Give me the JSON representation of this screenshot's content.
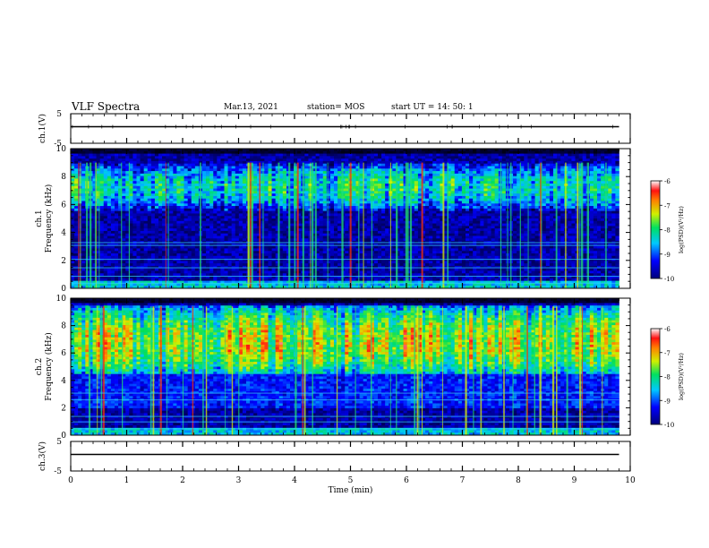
{
  "header": {
    "title": "VLF Spectra",
    "date": "Mar.13, 2021",
    "station": "station= MOS",
    "start_ut": "start  UT =   14: 50: 1"
  },
  "chart_data": [
    {
      "type": "line",
      "panel": "ch.1 waveform",
      "ylabel": "ch.1(V)",
      "ylim": [
        -5,
        5
      ],
      "y_ticks": [
        "5",
        "-5"
      ],
      "series": [
        {
          "x": [
            0,
            9.8
          ],
          "y": [
            0,
            0
          ]
        }
      ]
    },
    {
      "type": "heatmap",
      "panel": "ch.1 spectrogram",
      "ylabel": "ch.1\nFrequency (kHz)",
      "ylim": [
        0,
        10
      ],
      "y_ticks": [
        "0",
        "2",
        "4",
        "6",
        "8",
        "10"
      ],
      "data_xlim": [
        0,
        9.8
      ],
      "value_range": [
        -10,
        -6
      ],
      "colorbar": {
        "label": "log(PSD)(V²/Hz)",
        "ticks": [
          "-6",
          "-7",
          "-8",
          "-9",
          "-10"
        ]
      },
      "activity_band_khz": [
        5.5,
        9.0
      ],
      "narrowband_lines_khz": [
        0.4,
        0.9,
        1.5,
        2.1,
        3.1,
        3.3
      ]
    },
    {
      "type": "heatmap",
      "panel": "ch.2 spectrogram",
      "ylabel": "ch.2\nFrequency (kHz)",
      "ylim": [
        0,
        10
      ],
      "y_ticks": [
        "0",
        "2",
        "4",
        "6",
        "8",
        "10"
      ],
      "data_xlim": [
        0,
        9.8
      ],
      "value_range": [
        -10,
        -6
      ],
      "colorbar": {
        "label": "log(PSD)(V²/Hz)",
        "ticks": [
          "-6",
          "-7",
          "-8",
          "-9",
          "-10"
        ]
      },
      "activity_band_khz": [
        4.5,
        9.5
      ],
      "peak_khz": 6.8,
      "narrowband_lines_khz": [
        0.5,
        1.0,
        1.4,
        2.6,
        3.1
      ]
    },
    {
      "type": "line",
      "panel": "ch.3 waveform",
      "ylabel": "ch.3(V)",
      "ylim": [
        -5,
        5
      ],
      "y_ticks": [
        "5",
        "-5"
      ],
      "xlabel": "Time  (min)",
      "xlim": [
        0,
        10
      ],
      "x_ticks": [
        "0",
        "1",
        "2",
        "3",
        "4",
        "5",
        "6",
        "7",
        "8",
        "9",
        "10"
      ],
      "series": [
        {
          "x": [
            0,
            9.8
          ],
          "y": [
            0,
            0
          ]
        }
      ]
    }
  ]
}
